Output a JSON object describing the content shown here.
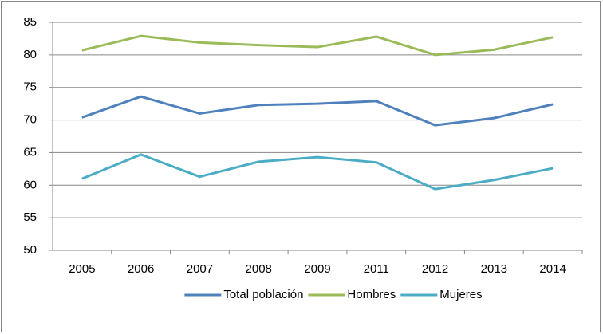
{
  "chart_data": {
    "type": "line",
    "categories": [
      "2005",
      "2006",
      "2007",
      "2008",
      "2009",
      "2011",
      "2012",
      "2013",
      "2014"
    ],
    "series": [
      {
        "name": "Total población",
        "color": "#4f81bd",
        "values": [
          70.4,
          73.6,
          71.0,
          72.3,
          72.5,
          72.9,
          69.2,
          70.3,
          72.4
        ]
      },
      {
        "name": "Hombres",
        "color": "#9bbb59",
        "values": [
          80.7,
          82.9,
          81.9,
          81.5,
          81.2,
          82.8,
          80.0,
          80.8,
          82.7
        ]
      },
      {
        "name": "Mujeres",
        "color": "#4bacc6",
        "values": [
          61.0,
          64.7,
          61.3,
          63.6,
          64.3,
          63.5,
          59.4,
          60.8,
          62.6
        ]
      }
    ],
    "ylim": [
      50,
      85
    ],
    "yticks": [
      50,
      55,
      60,
      65,
      70,
      75,
      80,
      85
    ],
    "grid": true,
    "legend": "bottom"
  }
}
